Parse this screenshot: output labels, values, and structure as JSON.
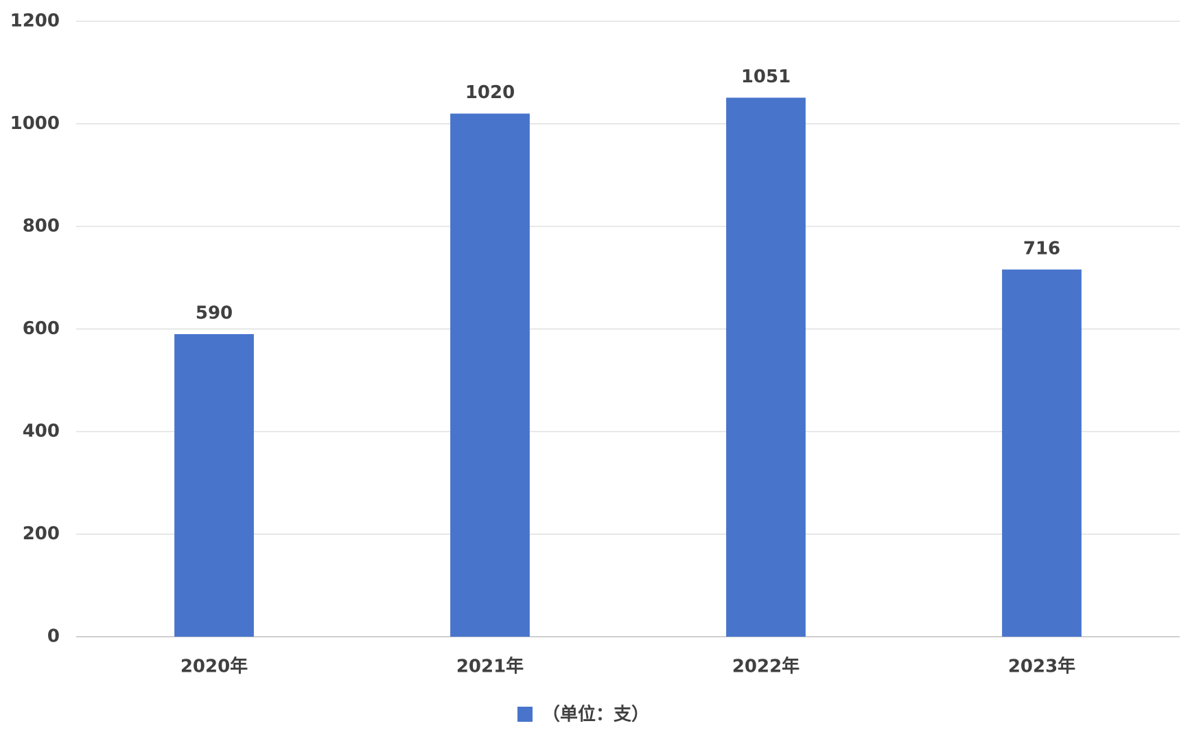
{
  "chart_data": {
    "type": "bar",
    "categories": [
      "2020年",
      "2021年",
      "2022年",
      "2023年"
    ],
    "series": [
      {
        "name": "（单位：支）",
        "color": "#4874cb",
        "values": [
          590,
          1020,
          1051,
          716
        ]
      }
    ],
    "ylim": [
      0,
      1200
    ],
    "yticks": [
      0,
      200,
      400,
      600,
      800,
      1000,
      1200
    ],
    "grid": true,
    "legend": "bottom"
  }
}
